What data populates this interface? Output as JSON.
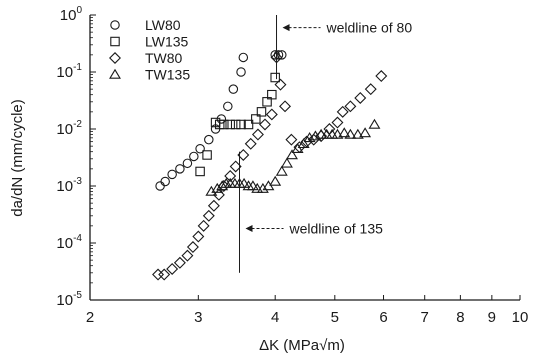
{
  "chart_data": {
    "type": "scatter",
    "title": "",
    "xlabel": "ΔK  (MPa√m)",
    "ylabel": "da/dN (mm/cycle)",
    "x_scale": "log",
    "y_scale": "log",
    "xlim": [
      2,
      10
    ],
    "ylim": [
      1e-05,
      1
    ],
    "x_tick_labels": [
      {
        "value": 2,
        "label": "2"
      },
      {
        "value": 3,
        "label": "3"
      },
      {
        "value": 4,
        "label": "4"
      },
      {
        "value": 5,
        "label": "5"
      },
      {
        "value": 6,
        "label": "6"
      },
      {
        "value": 7,
        "label": "7"
      },
      {
        "value": 8,
        "label": "8"
      },
      {
        "value": 9,
        "label": "9"
      },
      {
        "value": 10,
        "label": "10"
      }
    ],
    "y_ticks": [
      {
        "value": 1,
        "base": "10",
        "exp": "0"
      },
      {
        "value": 0.1,
        "base": "10",
        "exp": "-1"
      },
      {
        "value": 0.01,
        "base": "10",
        "exp": "-2"
      },
      {
        "value": 0.001,
        "base": "10",
        "exp": "-3"
      },
      {
        "value": 0.0001,
        "base": "10",
        "exp": "-4"
      },
      {
        "value": 1e-05,
        "base": "10",
        "exp": "-5"
      }
    ],
    "grid": false,
    "legend_position": "top-left",
    "series": [
      {
        "name": "LW80",
        "marker": "circle",
        "points": [
          [
            2.6,
            0.001
          ],
          [
            2.65,
            0.0012
          ],
          [
            2.72,
            0.0016
          ],
          [
            2.8,
            0.002
          ],
          [
            2.88,
            0.0025
          ],
          [
            2.95,
            0.0033
          ],
          [
            3.02,
            0.0045
          ],
          [
            3.12,
            0.0065
          ],
          [
            3.2,
            0.01
          ],
          [
            3.27,
            0.015
          ],
          [
            3.35,
            0.025
          ],
          [
            3.42,
            0.05
          ],
          [
            3.52,
            0.1
          ],
          [
            3.55,
            0.18
          ],
          [
            4.0,
            0.2
          ],
          [
            4.05,
            0.2
          ],
          [
            4.1,
            0.2
          ]
        ]
      },
      {
        "name": "LW135",
        "marker": "square",
        "points": [
          [
            3.02,
            0.0018
          ],
          [
            3.1,
            0.0035
          ],
          [
            3.2,
            0.013
          ],
          [
            3.25,
            0.012
          ],
          [
            3.3,
            0.012
          ],
          [
            3.38,
            0.012
          ],
          [
            3.45,
            0.012
          ],
          [
            3.52,
            0.012
          ],
          [
            3.62,
            0.012
          ],
          [
            3.72,
            0.015
          ],
          [
            3.8,
            0.02
          ],
          [
            3.88,
            0.03
          ],
          [
            3.95,
            0.04
          ],
          [
            4.0,
            0.08
          ]
        ]
      },
      {
        "name": "TW80",
        "marker": "diamond",
        "points": [
          [
            2.58,
            2.8e-05
          ],
          [
            2.64,
            2.8e-05
          ],
          [
            2.72,
            3.5e-05
          ],
          [
            2.8,
            4.5e-05
          ],
          [
            2.88,
            6e-05
          ],
          [
            2.94,
            8.5e-05
          ],
          [
            3.0,
            0.00013
          ],
          [
            3.06,
            0.0002
          ],
          [
            3.12,
            0.0003
          ],
          [
            3.18,
            0.00045
          ],
          [
            3.24,
            0.0007
          ],
          [
            3.3,
            0.001
          ],
          [
            3.38,
            0.0015
          ],
          [
            3.45,
            0.0022
          ],
          [
            3.55,
            0.0035
          ],
          [
            3.65,
            0.0055
          ],
          [
            3.75,
            0.008
          ],
          [
            3.85,
            0.012
          ],
          [
            3.95,
            0.018
          ],
          [
            4.02,
            0.18
          ],
          [
            4.08,
            0.06
          ],
          [
            4.15,
            0.025
          ],
          [
            4.25,
            0.0065
          ],
          [
            4.38,
            0.0048
          ],
          [
            4.5,
            0.006
          ],
          [
            4.62,
            0.0065
          ],
          [
            4.75,
            0.0075
          ],
          [
            4.9,
            0.01
          ],
          [
            5.05,
            0.013
          ],
          [
            5.15,
            0.02
          ],
          [
            5.3,
            0.025
          ],
          [
            5.5,
            0.035
          ],
          [
            5.72,
            0.05
          ],
          [
            5.95,
            0.085
          ]
        ]
      },
      {
        "name": "TW135",
        "marker": "triangle",
        "points": [
          [
            3.15,
            0.0008
          ],
          [
            3.22,
            0.0009
          ],
          [
            3.28,
            0.001
          ],
          [
            3.33,
            0.0011
          ],
          [
            3.38,
            0.0011
          ],
          [
            3.44,
            0.0011
          ],
          [
            3.5,
            0.0011
          ],
          [
            3.56,
            0.0011
          ],
          [
            3.62,
            0.001
          ],
          [
            3.68,
            0.001
          ],
          [
            3.74,
            0.0009
          ],
          [
            3.82,
            0.0009
          ],
          [
            3.9,
            0.001
          ],
          [
            4.0,
            0.0012
          ],
          [
            4.1,
            0.0018
          ],
          [
            4.18,
            0.0025
          ],
          [
            4.26,
            0.0035
          ],
          [
            4.35,
            0.0045
          ],
          [
            4.45,
            0.0055
          ],
          [
            4.55,
            0.007
          ],
          [
            4.65,
            0.0075
          ],
          [
            4.75,
            0.008
          ],
          [
            4.85,
            0.008
          ],
          [
            4.95,
            0.008
          ],
          [
            5.05,
            0.008
          ],
          [
            5.18,
            0.0085
          ],
          [
            5.3,
            0.008
          ],
          [
            5.45,
            0.008
          ],
          [
            5.6,
            0.0085
          ],
          [
            5.8,
            0.012
          ]
        ]
      }
    ],
    "annotations": [
      {
        "text": "weldline of 80",
        "vline_x": 4.02,
        "vline_y_range": [
          0.075,
          1
        ],
        "arrow_y": 0.6
      },
      {
        "text": "weldline of 135",
        "vline_x": 3.5,
        "vline_y_range": [
          3e-05,
          0.004
        ],
        "arrow_y": 0.00018
      }
    ]
  }
}
